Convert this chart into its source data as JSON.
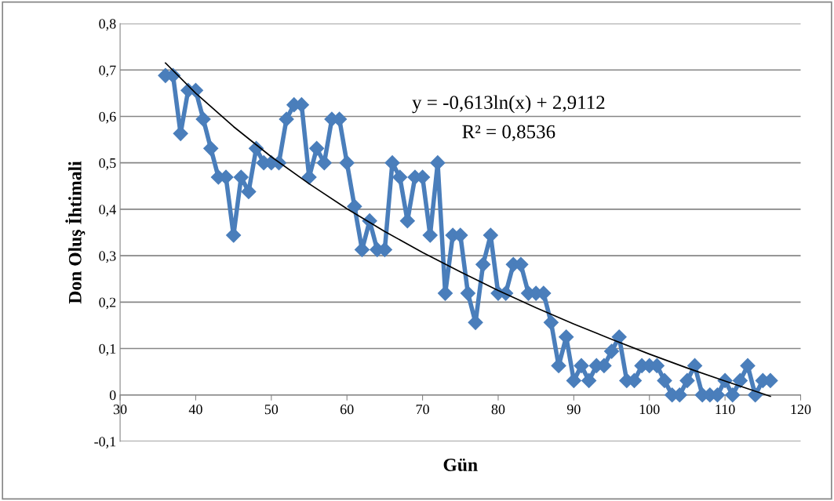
{
  "chart_data": {
    "type": "line",
    "xlabel": "Gün",
    "ylabel": "Don Oluş İhtimali",
    "annotations": [
      "y = -0,613ln(x) + 2,9112",
      "R² = 0,8536"
    ],
    "xlim": [
      30,
      120
    ],
    "xticks": [
      30,
      40,
      50,
      60,
      70,
      80,
      90,
      100,
      110,
      120
    ],
    "ylim": [
      -0.1,
      0.8
    ],
    "yticks": [
      {
        "value": -0.1,
        "label": "-0,1"
      },
      0,
      {
        "value": 0.1,
        "label": "0,1"
      },
      {
        "value": 0.2,
        "label": "0,2"
      },
      {
        "value": 0.3,
        "label": "0,3"
      },
      {
        "value": 0.4,
        "label": "0,4"
      },
      {
        "value": 0.5,
        "label": "0,5"
      },
      {
        "value": 0.6,
        "label": "0,6"
      },
      {
        "value": 0.7,
        "label": "0,7"
      },
      {
        "value": 0.8,
        "label": "0,8"
      }
    ],
    "grid": "y",
    "line_style": "solid",
    "legend": false,
    "series": [
      {
        "color": "#4a7ebb",
        "marker": "diamond",
        "x": [
          36,
          37,
          38,
          39,
          40,
          41,
          42,
          43,
          44,
          45,
          46,
          47,
          48,
          49,
          50,
          51,
          52,
          53,
          54,
          55,
          56,
          57,
          58,
          59,
          60,
          61,
          62,
          63,
          64,
          65,
          66,
          67,
          68,
          69,
          70,
          71,
          72,
          73,
          74,
          75,
          76,
          77,
          78,
          79,
          80,
          81,
          82,
          83,
          84,
          85,
          86,
          87,
          88,
          89,
          90,
          91,
          92,
          93,
          94,
          95,
          96,
          97,
          98,
          99,
          100,
          101,
          102,
          103,
          104,
          105,
          106,
          107,
          108,
          109,
          110,
          111,
          112,
          113,
          114,
          115,
          116
        ],
        "values": [
          0.688,
          0.688,
          0.563,
          0.656,
          0.656,
          0.594,
          0.531,
          0.469,
          0.469,
          0.344,
          0.469,
          0.438,
          0.531,
          0.5,
          0.5,
          0.5,
          0.594,
          0.625,
          0.625,
          0.469,
          0.531,
          0.5,
          0.594,
          0.594,
          0.5,
          0.406,
          0.313,
          0.375,
          0.313,
          0.313,
          0.5,
          0.469,
          0.375,
          0.469,
          0.469,
          0.344,
          0.5,
          0.219,
          0.344,
          0.344,
          0.219,
          0.156,
          0.281,
          0.344,
          0.219,
          0.219,
          0.281,
          0.281,
          0.219,
          0.219,
          0.219,
          0.156,
          0.063,
          0.125,
          0.031,
          0.063,
          0.031,
          0.063,
          0.063,
          0.094,
          0.125,
          0.031,
          0.031,
          0.063,
          0.063,
          0.063,
          0.031,
          0,
          0,
          0.031,
          0.063,
          0,
          0,
          0,
          0.031,
          0,
          0.031,
          0.063,
          0,
          0.031,
          0.031
        ]
      },
      {
        "type": "line",
        "color": "#000000",
        "x": [
          36,
          40,
          45,
          50,
          55,
          60,
          65,
          70,
          75,
          80,
          85,
          90,
          95,
          100,
          105,
          110,
          116
        ],
        "values": [
          0.715,
          0.65,
          0.578,
          0.513,
          0.455,
          0.401,
          0.352,
          0.307,
          0.265,
          0.225,
          0.188,
          0.153,
          0.12,
          0.088,
          0.058,
          0.03,
          -0.003
        ]
      }
    ]
  }
}
